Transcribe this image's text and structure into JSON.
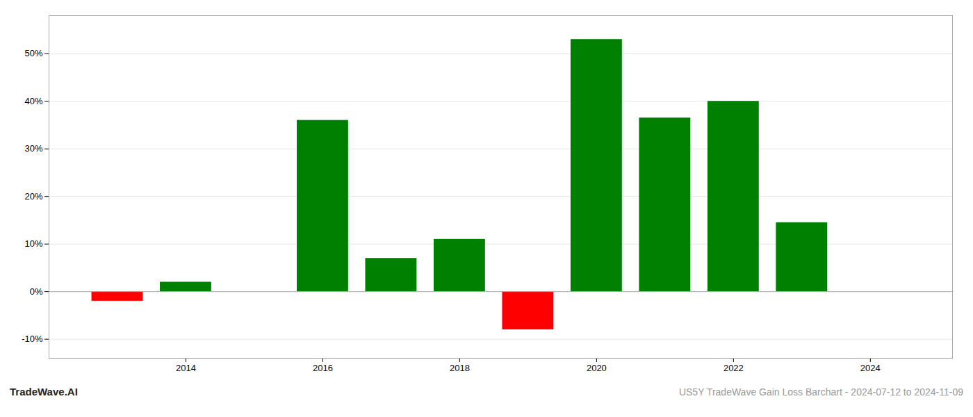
{
  "chart_data": {
    "type": "bar",
    "title": "US5Y TradeWave Gain Loss Barchart - 2024-07-12 to 2024-11-09",
    "annotations": [
      "TradeWave.AI"
    ],
    "x": [
      2013,
      2014,
      2016,
      2017,
      2018,
      2019,
      2020,
      2021,
      2022,
      2023
    ],
    "values": [
      -2.0,
      2.0,
      36.0,
      7.0,
      11.0,
      -8.0,
      53.0,
      36.5,
      40.0,
      14.5
    ],
    "colors": [
      "#ff0000",
      "#008000",
      "#008000",
      "#008000",
      "#008000",
      "#ff0000",
      "#008000",
      "#008000",
      "#008000",
      "#008000"
    ],
    "xlim": [
      2012,
      2025.2
    ],
    "ylim": [
      -14,
      58
    ],
    "xticks": [
      2014,
      2016,
      2018,
      2020,
      2022,
      2024
    ],
    "yticks": [
      {
        "value": -10,
        "label": "-10%"
      },
      {
        "value": 0,
        "label": "0%"
      },
      {
        "value": 10,
        "label": "10%"
      },
      {
        "value": 20,
        "label": "20%"
      },
      {
        "value": 30,
        "label": "30%"
      },
      {
        "value": 40,
        "label": "40%"
      },
      {
        "value": 50,
        "label": "50%"
      }
    ],
    "grid": true
  }
}
